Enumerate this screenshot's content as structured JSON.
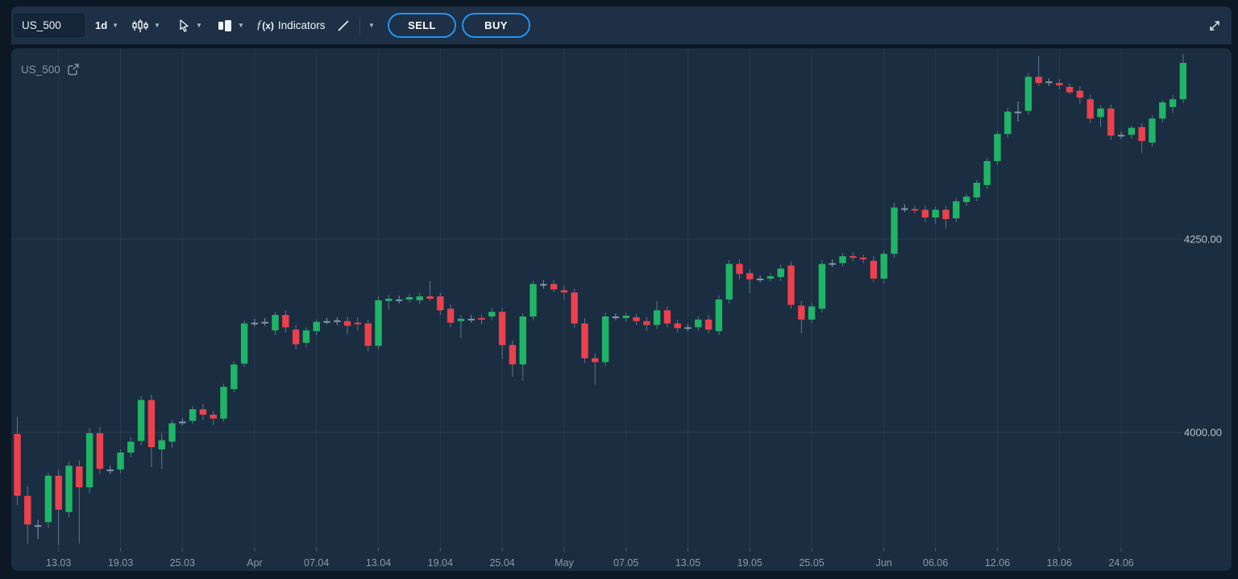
{
  "toolbar": {
    "symbol_input": "US_500",
    "timeframe": "1d",
    "fx_label": "ƒ",
    "fx_arg": "(x)",
    "indicators_label": "Indicators",
    "sell_label": "SELL",
    "buy_label": "BUY",
    "accent_color": "#2493f2"
  },
  "chart": {
    "watermark_symbol": "US_500"
  },
  "chart_data": {
    "type": "candlestick",
    "symbol": "US_500",
    "timeframe": "1d",
    "grid": true,
    "visible_price_range": [
      3850,
      4500
    ],
    "colors": {
      "up": "#1eb566",
      "down": "#ec404d",
      "doji": "#8297ab",
      "wick": "#5c7590"
    },
    "y_ticks": [
      {
        "price": 4250,
        "label": "4250.00"
      },
      {
        "price": 4000,
        "label": "4000.00"
      }
    ],
    "x_ticks": [
      {
        "label": "13.03",
        "candle_index": 4
      },
      {
        "label": "19.03",
        "candle_index": 10
      },
      {
        "label": "25.03",
        "candle_index": 16
      },
      {
        "label": "Apr",
        "candle_index": 23
      },
      {
        "label": "07.04",
        "candle_index": 29
      },
      {
        "label": "13.04",
        "candle_index": 35
      },
      {
        "label": "19.04",
        "candle_index": 41
      },
      {
        "label": "25.04",
        "candle_index": 47
      },
      {
        "label": "May",
        "candle_index": 53
      },
      {
        "label": "07.05",
        "candle_index": 59
      },
      {
        "label": "13.05",
        "candle_index": 65
      },
      {
        "label": "19.05",
        "candle_index": 71
      },
      {
        "label": "25.05",
        "candle_index": 77
      },
      {
        "label": "Jun",
        "candle_index": 84
      },
      {
        "label": "06.06",
        "candle_index": 89
      },
      {
        "label": "12.06",
        "candle_index": 95
      },
      {
        "label": "18.06",
        "candle_index": 101
      },
      {
        "label": "24.06",
        "candle_index": 107
      }
    ],
    "columns": [
      "date",
      "open",
      "high",
      "low",
      "close"
    ],
    "candles": [
      [
        "09.03",
        3998,
        4020,
        3906,
        3918
      ],
      [
        "10.03",
        3918,
        3930,
        3856,
        3881
      ],
      [
        "11.03",
        3879,
        3887,
        3862,
        3880
      ],
      [
        "12.03",
        3884,
        3948,
        3876,
        3944
      ],
      [
        "13.03",
        3944,
        3952,
        3854,
        3900
      ],
      [
        "14.03",
        3897,
        3962,
        3890,
        3957
      ],
      [
        "15.03",
        3956,
        3964,
        3856,
        3929
      ],
      [
        "16.03",
        3929,
        4006,
        3921,
        3999
      ],
      [
        "17.03",
        3999,
        4007,
        3946,
        3953
      ],
      [
        "18.03",
        3951,
        3957,
        3946,
        3952
      ],
      [
        "19.03",
        3952,
        3978,
        3947,
        3974
      ],
      [
        "20.03",
        3974,
        3994,
        3968,
        3988
      ],
      [
        "21.03",
        3989,
        4047,
        3983,
        4042
      ],
      [
        "22.03",
        4042,
        4049,
        3955,
        3981
      ],
      [
        "23.03",
        3978,
        3999,
        3953,
        3990
      ],
      [
        "24.03",
        3988,
        4016,
        3980,
        4012
      ],
      [
        "25.03",
        4013,
        4018,
        4009,
        4014
      ],
      [
        "26.03",
        4015,
        4034,
        4011,
        4030
      ],
      [
        "27.03",
        4030,
        4037,
        4016,
        4023
      ],
      [
        "28.03",
        4023,
        4028,
        4010,
        4018
      ],
      [
        "29.03",
        4018,
        4063,
        4014,
        4059
      ],
      [
        "30.03",
        4056,
        4092,
        4052,
        4088
      ],
      [
        "31.03",
        4089,
        4145,
        4085,
        4141
      ],
      [
        "01.04",
        4142,
        4147,
        4137,
        4142
      ],
      [
        "02.04",
        4143,
        4148,
        4138,
        4143
      ],
      [
        "03.04",
        4132,
        4156,
        4126,
        4152
      ],
      [
        "04.04",
        4152,
        4158,
        4129,
        4136
      ],
      [
        "05.04",
        4133,
        4139,
        4107,
        4114
      ],
      [
        "06.04",
        4116,
        4136,
        4110,
        4132
      ],
      [
        "07.04",
        4131,
        4146,
        4126,
        4143
      ],
      [
        "08.04",
        4144,
        4148,
        4140,
        4144
      ],
      [
        "09.04",
        4144,
        4149,
        4139,
        4145
      ],
      [
        "10.04",
        4144,
        4150,
        4127,
        4138
      ],
      [
        "11.04",
        4142,
        4149,
        4132,
        4140
      ],
      [
        "12.04",
        4141,
        4146,
        4105,
        4112
      ],
      [
        "13.04",
        4112,
        4176,
        4107,
        4171
      ],
      [
        "14.04",
        4170,
        4178,
        4159,
        4173
      ],
      [
        "15.04",
        4172,
        4177,
        4167,
        4172
      ],
      [
        "16.04",
        4172,
        4179,
        4168,
        4175
      ],
      [
        "17.04",
        4171,
        4181,
        4166,
        4176
      ],
      [
        "18.04",
        4176,
        4196,
        4170,
        4173
      ],
      [
        "19.04",
        4176,
        4181,
        4152,
        4158
      ],
      [
        "20.04",
        4160,
        4166,
        4136,
        4142
      ],
      [
        "21.04",
        4144,
        4152,
        4122,
        4147
      ],
      [
        "22.04",
        4147,
        4152,
        4142,
        4147
      ],
      [
        "23.04",
        4148,
        4152,
        4140,
        4146
      ],
      [
        "24.04",
        4150,
        4161,
        4145,
        4156
      ],
      [
        "25.04",
        4156,
        4161,
        4095,
        4113
      ],
      [
        "26.04",
        4113,
        4119,
        4072,
        4088
      ],
      [
        "27.04",
        4088,
        4154,
        4067,
        4150
      ],
      [
        "28.04",
        4150,
        4196,
        4145,
        4192
      ],
      [
        "29.04",
        4192,
        4197,
        4186,
        4191
      ],
      [
        "30.04",
        4192,
        4197,
        4181,
        4185
      ],
      [
        "01.05",
        4184,
        4190,
        4172,
        4181
      ],
      [
        "02.05",
        4181,
        4186,
        4135,
        4141
      ],
      [
        "03.05",
        4141,
        4148,
        4090,
        4096
      ],
      [
        "04.05",
        4096,
        4102,
        4062,
        4091
      ],
      [
        "05.05",
        4091,
        4155,
        4086,
        4150
      ],
      [
        "06.05",
        4150,
        4154,
        4145,
        4149
      ],
      [
        "07.05",
        4148,
        4155,
        4143,
        4151
      ],
      [
        "08.05",
        4149,
        4153,
        4139,
        4144
      ],
      [
        "09.05",
        4144,
        4150,
        4131,
        4139
      ],
      [
        "10.05",
        4139,
        4170,
        4134,
        4158
      ],
      [
        "11.05",
        4158,
        4163,
        4136,
        4141
      ],
      [
        "12.05",
        4141,
        4146,
        4129,
        4135
      ],
      [
        "13.05",
        4135,
        4140,
        4131,
        4136
      ],
      [
        "14.05",
        4136,
        4150,
        4131,
        4146
      ],
      [
        "15.05",
        4146,
        4152,
        4128,
        4133
      ],
      [
        "16.05",
        4131,
        4177,
        4126,
        4172
      ],
      [
        "17.05",
        4172,
        4223,
        4167,
        4218
      ],
      [
        "18.05",
        4218,
        4224,
        4198,
        4205
      ],
      [
        "19.05",
        4206,
        4211,
        4180,
        4198
      ],
      [
        "20.05",
        4198,
        4203,
        4194,
        4199
      ],
      [
        "21.05",
        4199,
        4206,
        4195,
        4202
      ],
      [
        "22.05",
        4201,
        4217,
        4196,
        4212
      ],
      [
        "23.05",
        4216,
        4221,
        4160,
        4165
      ],
      [
        "24.05",
        4164,
        4170,
        4128,
        4146
      ],
      [
        "25.05",
        4146,
        4168,
        4141,
        4163
      ],
      [
        "26.05",
        4160,
        4223,
        4155,
        4218
      ],
      [
        "27.05",
        4218,
        4224,
        4214,
        4219
      ],
      [
        "28.05",
        4219,
        4232,
        4215,
        4228
      ],
      [
        "29.05",
        4228,
        4233,
        4221,
        4226
      ],
      [
        "30.05",
        4226,
        4230,
        4219,
        4224
      ],
      [
        "31.05",
        4222,
        4228,
        4194,
        4199
      ],
      [
        "01.06",
        4199,
        4235,
        4193,
        4231
      ],
      [
        "02.06",
        4231,
        4297,
        4226,
        4291
      ],
      [
        "03.06",
        4290,
        4295,
        4285,
        4289
      ],
      [
        "04.06",
        4289,
        4293,
        4283,
        4287
      ],
      [
        "05.06",
        4288,
        4293,
        4272,
        4278
      ],
      [
        "06.06",
        4278,
        4292,
        4270,
        4288
      ],
      [
        "07.06",
        4288,
        4293,
        4264,
        4276
      ],
      [
        "08.06",
        4277,
        4303,
        4272,
        4299
      ],
      [
        "09.06",
        4298,
        4309,
        4293,
        4305
      ],
      [
        "10.06",
        4304,
        4327,
        4299,
        4323
      ],
      [
        "11.06",
        4320,
        4355,
        4315,
        4351
      ],
      [
        "12.06",
        4351,
        4390,
        4346,
        4386
      ],
      [
        "13.06",
        4386,
        4420,
        4381,
        4415
      ],
      [
        "14.06",
        4414,
        4428,
        4402,
        4415
      ],
      [
        "15.06",
        4416,
        4465,
        4411,
        4460
      ],
      [
        "16.06",
        4460,
        4487,
        4448,
        4452
      ],
      [
        "17.06",
        4453,
        4458,
        4448,
        4454
      ],
      [
        "18.06",
        4452,
        4457,
        4444,
        4449
      ],
      [
        "19.06",
        4447,
        4452,
        4437,
        4440
      ],
      [
        "20.06",
        4442,
        4448,
        4425,
        4433
      ],
      [
        "21.06",
        4431,
        4437,
        4400,
        4406
      ],
      [
        "22.06",
        4408,
        4423,
        4395,
        4419
      ],
      [
        "23.06",
        4419,
        4424,
        4378,
        4384
      ],
      [
        "24.06",
        4385,
        4389,
        4380,
        4385
      ],
      [
        "25.06",
        4385,
        4397,
        4380,
        4394
      ],
      [
        "26.06",
        4395,
        4400,
        4362,
        4377
      ],
      [
        "27.06",
        4375,
        4410,
        4370,
        4406
      ],
      [
        "28.06",
        4406,
        4430,
        4401,
        4427
      ],
      [
        "29.06",
        4421,
        4436,
        4413,
        4431
      ],
      [
        "30.06",
        4431,
        4490,
        4426,
        4478
      ]
    ]
  }
}
